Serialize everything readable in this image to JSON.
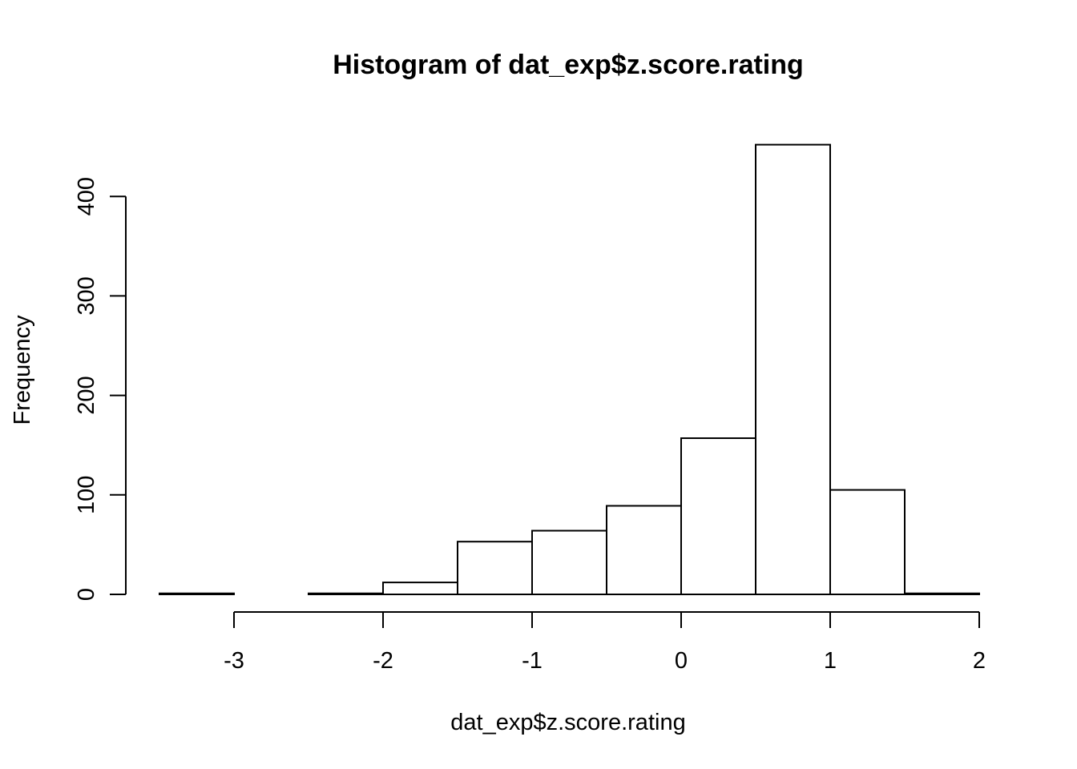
{
  "chart_data": {
    "type": "bar",
    "title": "Histogram of dat_exp$z.score.rating",
    "xlabel": "dat_exp$z.score.rating",
    "ylabel": "Frequency",
    "bins": [
      {
        "x0": -3.5,
        "x1": -3.0,
        "count": 1
      },
      {
        "x0": -3.0,
        "x1": -2.5,
        "count": 0
      },
      {
        "x0": -2.5,
        "x1": -2.0,
        "count": 1
      },
      {
        "x0": -2.0,
        "x1": -1.5,
        "count": 12
      },
      {
        "x0": -1.5,
        "x1": -1.0,
        "count": 53
      },
      {
        "x0": -1.0,
        "x1": -0.5,
        "count": 64
      },
      {
        "x0": -0.5,
        "x1": 0.0,
        "count": 89
      },
      {
        "x0": 0.0,
        "x1": 0.5,
        "count": 157
      },
      {
        "x0": 0.5,
        "x1": 1.0,
        "count": 452
      },
      {
        "x0": 1.0,
        "x1": 1.5,
        "count": 105
      },
      {
        "x0": 1.5,
        "x1": 2.0,
        "count": 1
      }
    ],
    "xticks": [
      -3,
      -2,
      -1,
      0,
      1,
      2
    ],
    "xtick_labels": [
      "-3",
      "-2",
      "-1",
      "0",
      "1",
      "2"
    ],
    "yticks": [
      0,
      100,
      200,
      300,
      400
    ],
    "ytick_labels": [
      "0",
      "100",
      "200",
      "300",
      "400"
    ],
    "grid": false,
    "legend": "none"
  }
}
